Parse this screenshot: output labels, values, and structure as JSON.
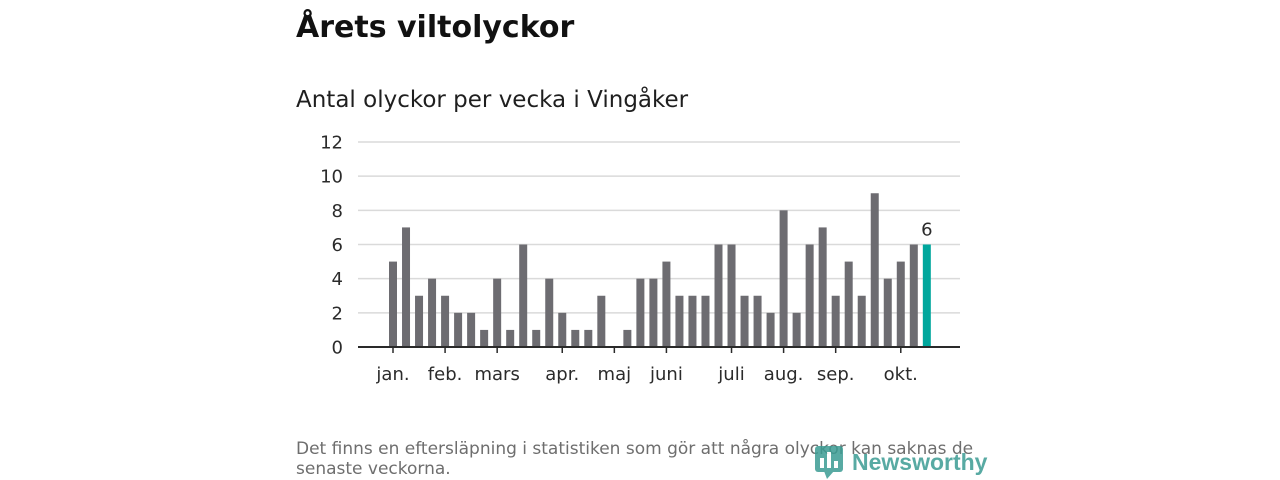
{
  "page": {
    "headline": "Årets viltolyckor"
  },
  "chart_data": {
    "type": "bar",
    "title": "Antal olyckor per vecka i Vingåker",
    "ylim": [
      0,
      12
    ],
    "yticks": [
      0,
      2,
      4,
      6,
      8,
      10,
      12
    ],
    "grid": true,
    "values": [
      5,
      7,
      3,
      4,
      3,
      2,
      2,
      1,
      4,
      1,
      6,
      1,
      4,
      2,
      1,
      1,
      3,
      0,
      1,
      4,
      4,
      5,
      3,
      3,
      3,
      6,
      6,
      3,
      3,
      2,
      8,
      2,
      6,
      7,
      3,
      5,
      3,
      9,
      4,
      5,
      6,
      6
    ],
    "month_ticks": [
      {
        "label": "jan.",
        "index": 0
      },
      {
        "label": "feb.",
        "index": 4
      },
      {
        "label": "mars",
        "index": 8
      },
      {
        "label": "apr.",
        "index": 13
      },
      {
        "label": "maj",
        "index": 17
      },
      {
        "label": "juni",
        "index": 21
      },
      {
        "label": "juli",
        "index": 26
      },
      {
        "label": "aug.",
        "index": 30
      },
      {
        "label": "sep.",
        "index": 34
      },
      {
        "label": "okt.",
        "index": 39
      }
    ],
    "highlight_index": 41,
    "data_label": "6",
    "colors": {
      "bar": "#6d6c71",
      "highlight": "#00a79d",
      "grid": "#dadada",
      "axis": "#2a2a2a"
    }
  },
  "footnote": {
    "lines": [
      "Det finns en eftersläpning i statistiken som gör att några olyckor kan saknas de",
      "senaste veckorna."
    ]
  },
  "logo": {
    "text": "Newsworthy",
    "color": "#3b9c93"
  }
}
